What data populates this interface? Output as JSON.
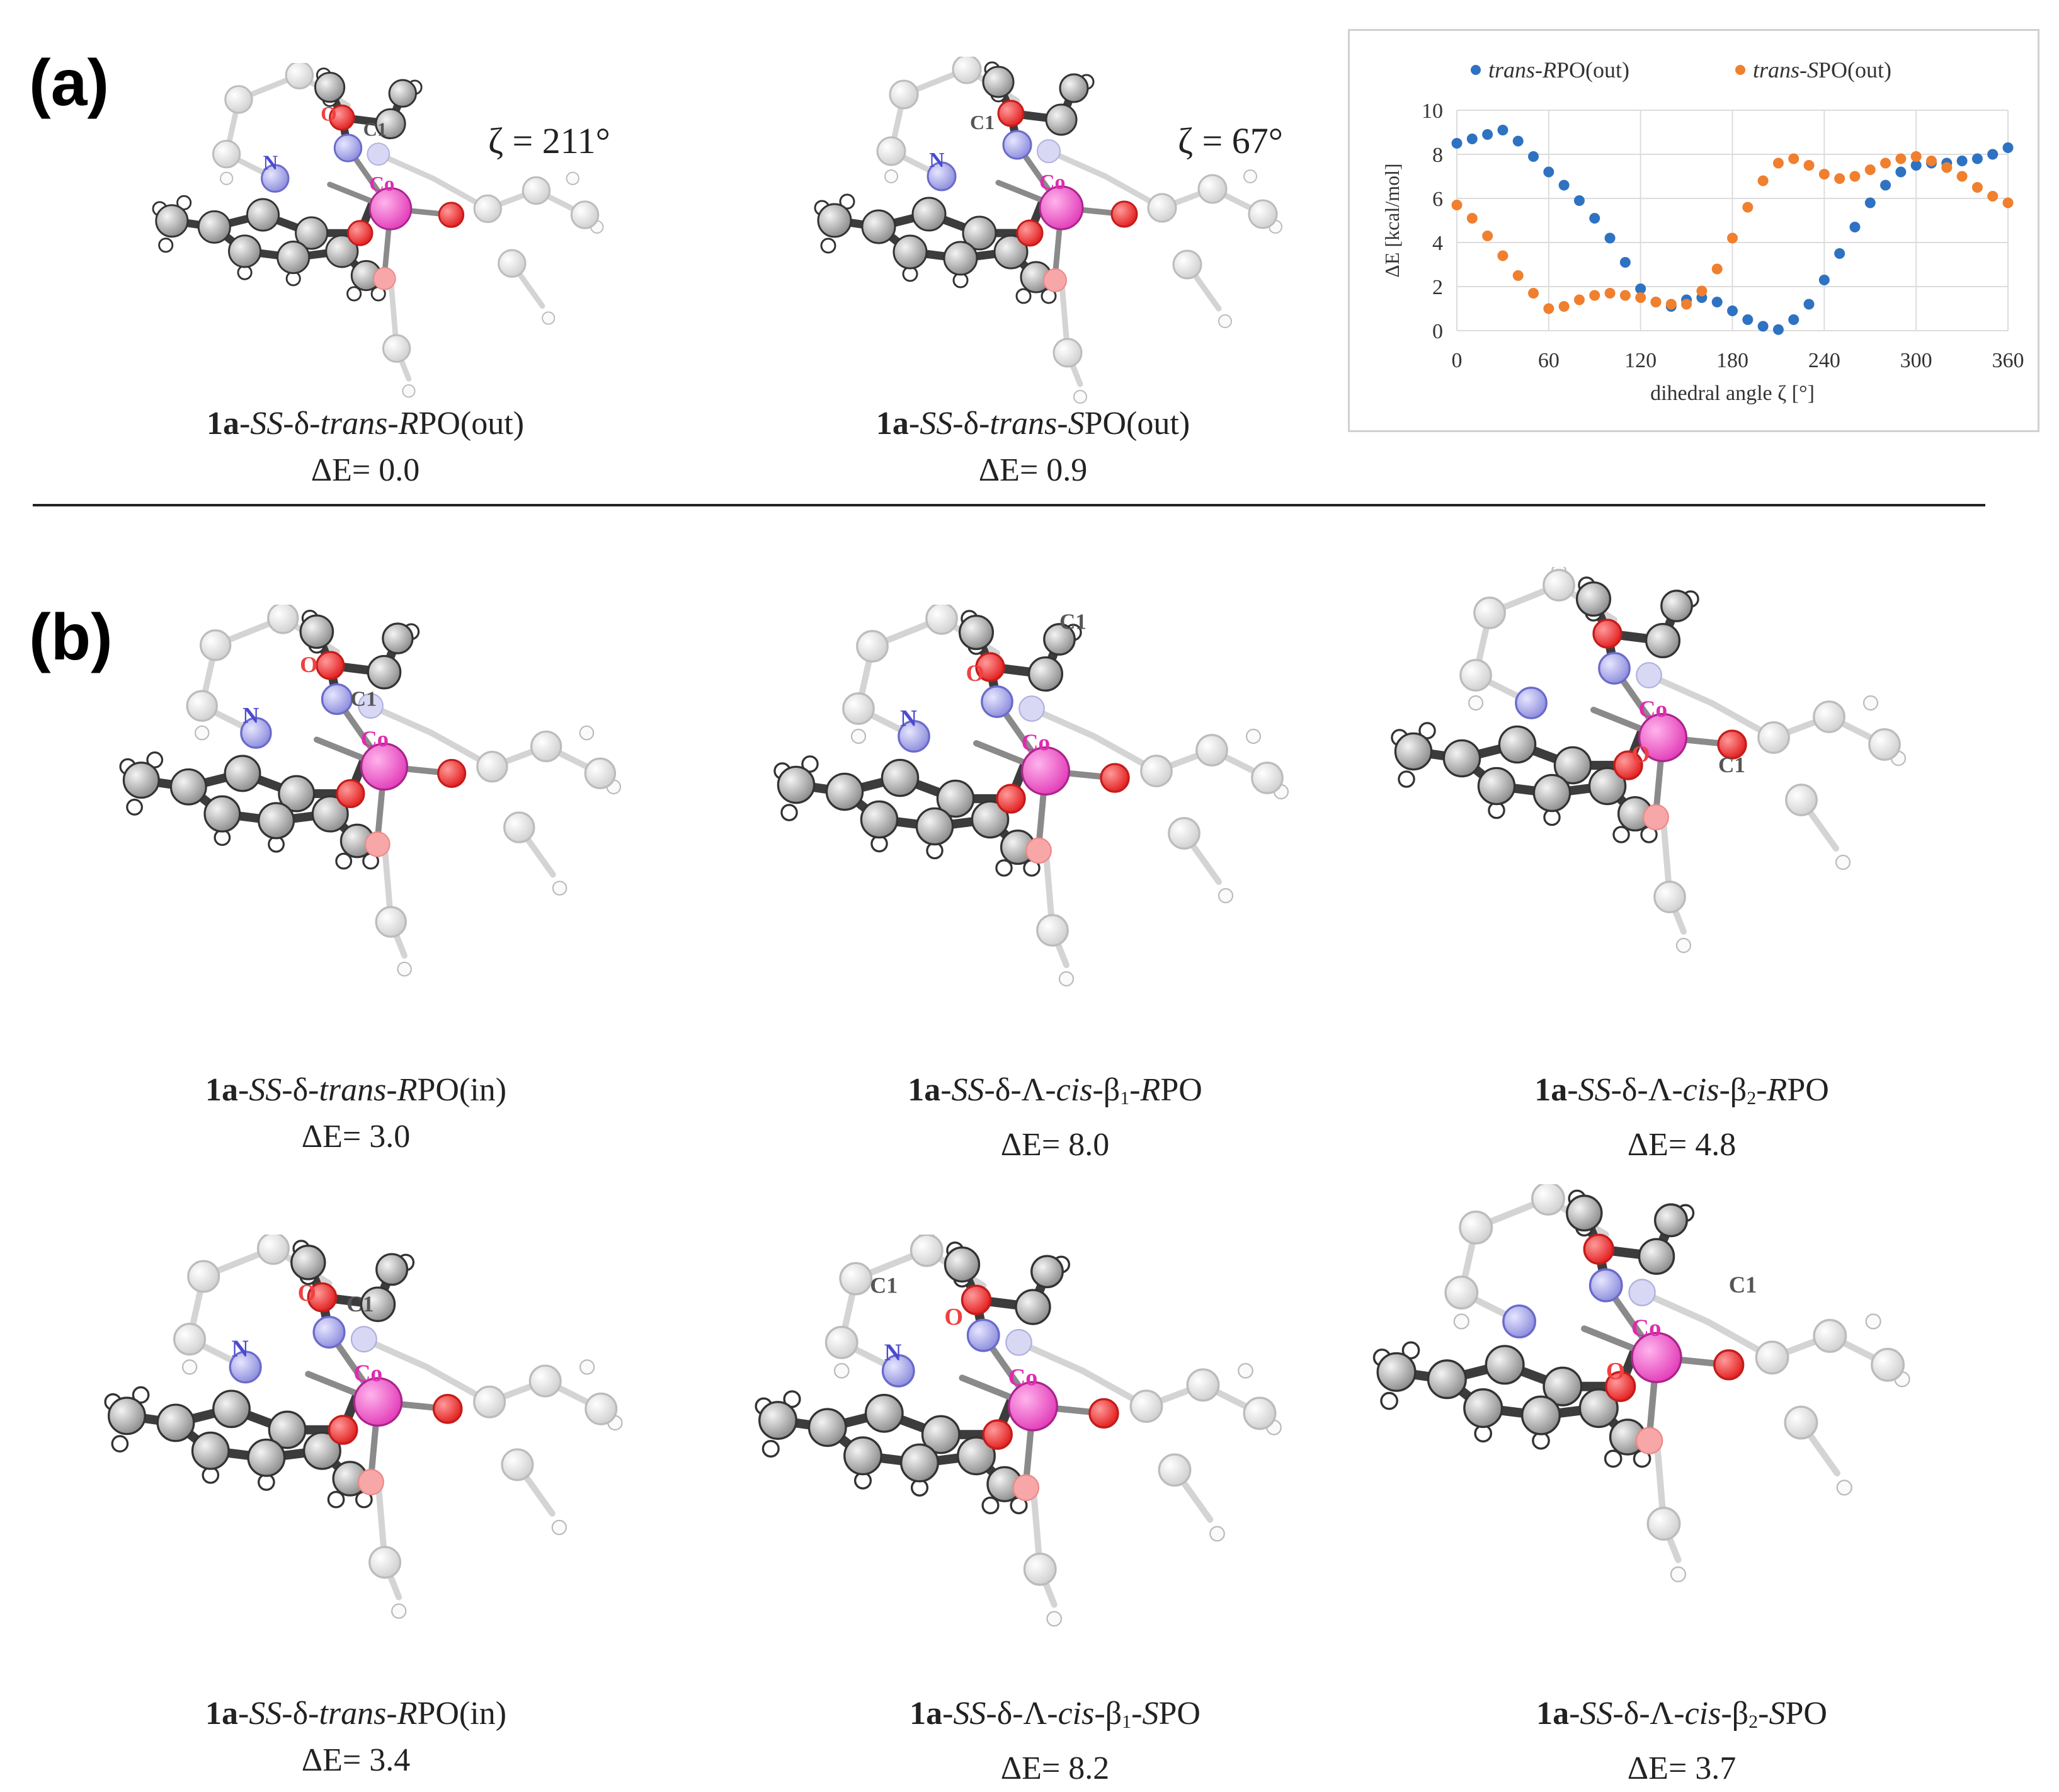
{
  "panels": {
    "a": "(a)",
    "b": "(b)"
  },
  "zeta_labels": {
    "first": "ζ = 211°",
    "second": "ζ = 67°"
  },
  "atom_labels": {
    "c1": "C1",
    "n": "N",
    "o": "O",
    "co": "Co"
  },
  "captions": [
    {
      "id": "a1",
      "prefix": "1a",
      "ss": "SS",
      "mid": "-δ-",
      "conf": "trans",
      "dash": "-",
      "stereo": "R",
      "tail": "PO(out)",
      "energy": "ΔE= 0.0"
    },
    {
      "id": "a2",
      "prefix": "1a",
      "ss": "SS",
      "mid": "-δ-",
      "conf": "trans",
      "dash": "-",
      "stereo": "S",
      "tail": "PO(out)",
      "energy": "ΔE= 0.9"
    },
    {
      "id": "b1",
      "prefix": "1a",
      "ss": "SS",
      "mid": "-δ-",
      "conf": "trans",
      "dash": "-",
      "stereo": "R",
      "tail": "PO(in)",
      "energy": "ΔE= 3.0"
    },
    {
      "id": "b2",
      "prefix": "1a",
      "ss": "SS",
      "mid": "-δ-Λ-",
      "conf": "cis",
      "beta": "-β",
      "sub": "1",
      "dash": "-",
      "stereo": "R",
      "tail": "PO",
      "energy": "ΔE= 8.0"
    },
    {
      "id": "b3",
      "prefix": "1a",
      "ss": "SS",
      "mid": "-δ-Λ-",
      "conf": "cis",
      "beta": "-β",
      "sub": "2",
      "dash": "-",
      "stereo": "R",
      "tail": "PO",
      "energy": "ΔE= 4.8"
    },
    {
      "id": "b4",
      "prefix": "1a",
      "ss": "SS",
      "mid": "-δ-",
      "conf": "trans",
      "dash": "-",
      "stereo": "R",
      "tail": "PO(in)",
      "energy": "ΔE= 3.4"
    },
    {
      "id": "b5",
      "prefix": "1a",
      "ss": "SS",
      "mid": "-δ-Λ-",
      "conf": "cis",
      "beta": "-β",
      "sub": "1",
      "dash": "-",
      "stereo": "S",
      "tail": "PO",
      "energy": "ΔE= 8.2"
    },
    {
      "id": "b6",
      "prefix": "1a",
      "ss": "SS",
      "mid": "-δ-Λ-",
      "conf": "cis",
      "beta": "-β",
      "sub": "2",
      "dash": "-",
      "stereo": "S",
      "tail": "PO",
      "energy": "ΔE= 3.7"
    }
  ],
  "chart_data": {
    "type": "scatter",
    "title": "",
    "xlabel": "dihedral angle ζ [°]",
    "ylabel": "ΔE [kcal/mol]",
    "xlim": [
      0,
      360
    ],
    "ylim": [
      0,
      10
    ],
    "xticks": [
      0,
      60,
      120,
      180,
      240,
      300,
      360
    ],
    "yticks": [
      0,
      2,
      4,
      6,
      8,
      10
    ],
    "grid": true,
    "legend_position": "top",
    "series": [
      {
        "name": "trans-RPO(out)",
        "legend_prefix": "trans-",
        "legend_italic": "R",
        "legend_suffix": "PO(out)",
        "color": "#2e72c2",
        "x": [
          0,
          10,
          20,
          30,
          40,
          50,
          60,
          70,
          80,
          90,
          100,
          110,
          120,
          130,
          140,
          150,
          160,
          170,
          180,
          190,
          200,
          210,
          220,
          230,
          240,
          250,
          260,
          270,
          280,
          290,
          300,
          310,
          320,
          330,
          340,
          350,
          360
        ],
        "y": [
          8.5,
          8.7,
          8.9,
          9.1,
          8.6,
          7.9,
          7.2,
          6.6,
          5.9,
          5.1,
          4.2,
          3.1,
          1.9,
          1.3,
          1.1,
          1.4,
          1.5,
          1.3,
          0.9,
          0.5,
          0.2,
          0.05,
          0.5,
          1.2,
          2.3,
          3.5,
          4.7,
          5.8,
          6.6,
          7.2,
          7.5,
          7.6,
          7.6,
          7.7,
          7.8,
          8.0,
          8.3
        ]
      },
      {
        "name": "trans-SPO(out)",
        "legend_prefix": "trans-",
        "legend_italic": "S",
        "legend_suffix": "PO(out)",
        "color": "#f07f2e",
        "x": [
          0,
          10,
          20,
          30,
          40,
          50,
          60,
          70,
          80,
          90,
          100,
          110,
          120,
          130,
          140,
          150,
          160,
          170,
          180,
          190,
          200,
          210,
          220,
          230,
          240,
          250,
          260,
          270,
          280,
          290,
          300,
          310,
          320,
          330,
          340,
          350,
          360
        ],
        "y": [
          5.7,
          5.1,
          4.3,
          3.4,
          2.5,
          1.7,
          1.0,
          1.1,
          1.4,
          1.6,
          1.7,
          1.6,
          1.5,
          1.3,
          1.2,
          1.2,
          1.8,
          2.8,
          4.2,
          5.6,
          6.8,
          7.6,
          7.8,
          7.5,
          7.1,
          6.9,
          7.0,
          7.3,
          7.6,
          7.8,
          7.9,
          7.7,
          7.4,
          7.0,
          6.5,
          6.1,
          5.8
        ]
      }
    ]
  }
}
